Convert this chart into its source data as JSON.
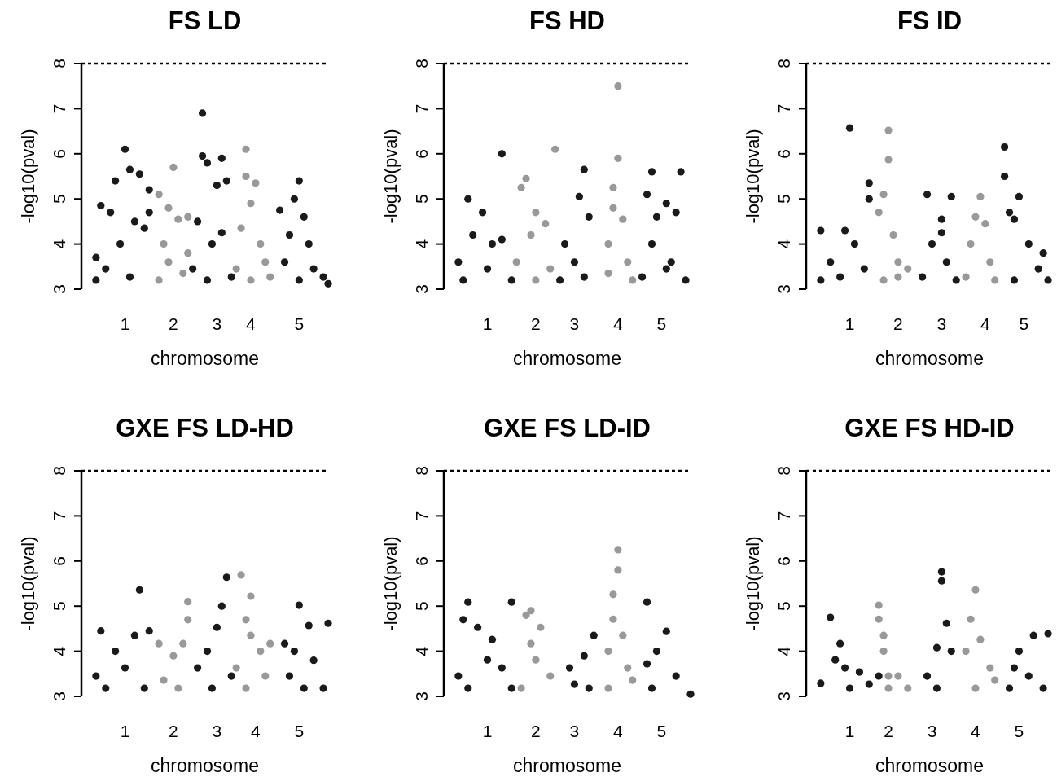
{
  "chart_data": [
    {
      "type": "scatter",
      "title": "FS LD",
      "xlabel": "chromosome",
      "ylabel": "-log10(pval)",
      "ylim": [
        3,
        8
      ],
      "yticks": [
        3,
        4,
        5,
        6,
        7,
        8
      ],
      "marker": "circle",
      "ref_lines": [
        {
          "axis": "y",
          "value": 8,
          "line_style": "dashed"
        }
      ],
      "categories": [
        null,
        null,
        null,
        null,
        null,
        null,
        null,
        null,
        "1",
        null,
        null,
        null,
        null,
        null,
        null,
        null,
        null,
        null,
        "2",
        null,
        null,
        null,
        null,
        null,
        null,
        null,
        null,
        "3",
        null,
        null,
        null,
        null,
        null,
        null,
        "4",
        null,
        null,
        null,
        null,
        null,
        null,
        null,
        null,
        null,
        "5",
        null,
        null,
        null,
        null,
        null,
        null
      ],
      "series": [
        {
          "color": "#1a1a1a",
          "values": [
            null,
            null,
            3.7,
            4.85,
            3.45,
            4.7,
            5.4,
            4.0,
            6.1,
            5.65,
            4.5,
            5.55,
            4.35,
            5.2,
            null,
            null,
            null,
            null,
            null,
            null,
            null,
            null,
            3.45,
            4.5,
            6.9,
            5.8,
            4.0,
            5.3,
            5.9,
            5.4,
            3.27,
            null,
            null,
            null,
            null,
            null,
            null,
            null,
            null,
            null,
            4.75,
            3.6,
            4.2,
            5.0,
            5.4,
            4.6,
            4.0,
            3.45,
            null,
            3.27,
            3.12
          ]
        },
        {
          "color": "#1a1a1a",
          "values": [
            null,
            null,
            3.2,
            null,
            null,
            null,
            null,
            null,
            null,
            3.27,
            null,
            null,
            null,
            4.7,
            null,
            null,
            null,
            null,
            null,
            null,
            null,
            null,
            null,
            null,
            5.95,
            3.2,
            null,
            null,
            4.25,
            null,
            null,
            null,
            null,
            null,
            null,
            null,
            null,
            null,
            null,
            null,
            null,
            null,
            null,
            null,
            3.2,
            null,
            null,
            null,
            null,
            null,
            null
          ]
        },
        {
          "color": "#999999",
          "values": [
            null,
            null,
            null,
            null,
            null,
            null,
            null,
            null,
            null,
            null,
            null,
            null,
            null,
            null,
            null,
            5.1,
            4.0,
            4.8,
            5.7,
            4.55,
            3.35,
            4.6,
            null,
            null,
            null,
            null,
            null,
            null,
            null,
            null,
            null,
            3.45,
            4.35,
            6.1,
            4.9,
            5.35,
            4.0,
            3.6,
            3.27,
            null,
            null,
            null,
            null,
            null,
            null,
            null,
            null,
            null,
            null,
            null,
            null
          ]
        },
        {
          "color": "#999999",
          "values": [
            null,
            null,
            null,
            null,
            null,
            null,
            null,
            null,
            null,
            null,
            null,
            null,
            null,
            null,
            null,
            3.2,
            null,
            3.6,
            null,
            null,
            null,
            3.8,
            null,
            null,
            null,
            null,
            null,
            null,
            null,
            null,
            null,
            null,
            null,
            5.5,
            3.2,
            null,
            null,
            null,
            null,
            null,
            null,
            null,
            null,
            null,
            null,
            null,
            null,
            null,
            null,
            null,
            null
          ]
        }
      ]
    },
    {
      "type": "scatter",
      "title": "FS HD",
      "xlabel": "chromosome",
      "ylabel": "-log10(pval)",
      "ylim": [
        3,
        8
      ],
      "yticks": [
        3,
        4,
        5,
        6,
        7,
        8
      ],
      "marker": "circle",
      "ref_lines": [
        {
          "axis": "y",
          "value": 8,
          "line_style": "dashed"
        }
      ],
      "categories": [
        null,
        null,
        null,
        null,
        null,
        null,
        null,
        null,
        "1",
        null,
        null,
        null,
        null,
        null,
        null,
        null,
        null,
        null,
        "2",
        null,
        null,
        null,
        null,
        null,
        null,
        null,
        "3",
        null,
        null,
        null,
        null,
        null,
        null,
        null,
        null,
        "4",
        null,
        null,
        null,
        null,
        null,
        null,
        null,
        null,
        "5",
        null,
        null,
        null,
        null,
        null,
        null
      ],
      "series": [
        {
          "color": "#1a1a1a",
          "values": [
            null,
            null,
            3.6,
            3.2,
            5.0,
            4.2,
            null,
            4.7,
            3.45,
            4.0,
            null,
            6.0,
            null,
            3.2,
            null,
            null,
            null,
            null,
            null,
            null,
            null,
            null,
            null,
            3.2,
            4.0,
            null,
            3.6,
            5.05,
            5.65,
            4.6,
            null,
            null,
            null,
            null,
            null,
            null,
            null,
            null,
            null,
            null,
            3.27,
            5.1,
            5.6,
            4.6,
            null,
            4.9,
            3.6,
            4.7,
            5.6,
            3.2,
            null
          ]
        },
        {
          "color": "#1a1a1a",
          "values": [
            null,
            null,
            null,
            null,
            null,
            null,
            null,
            null,
            null,
            null,
            null,
            4.1,
            null,
            null,
            null,
            null,
            null,
            null,
            null,
            null,
            null,
            null,
            null,
            null,
            null,
            null,
            null,
            null,
            3.27,
            null,
            null,
            null,
            null,
            null,
            null,
            null,
            null,
            null,
            null,
            null,
            null,
            null,
            4.0,
            null,
            null,
            3.45,
            null,
            null,
            null,
            null,
            null
          ]
        },
        {
          "color": "#999999",
          "values": [
            null,
            null,
            null,
            null,
            null,
            null,
            null,
            null,
            null,
            null,
            null,
            null,
            null,
            null,
            3.6,
            5.25,
            5.45,
            4.2,
            4.7,
            null,
            4.45,
            3.45,
            6.1,
            null,
            null,
            null,
            null,
            null,
            null,
            null,
            null,
            null,
            null,
            4.0,
            5.25,
            7.5,
            4.55,
            3.6,
            3.2,
            null,
            null,
            null,
            null,
            null,
            null,
            null,
            null,
            null,
            null,
            null,
            null
          ]
        },
        {
          "color": "#999999",
          "values": [
            null,
            null,
            null,
            null,
            null,
            null,
            null,
            null,
            null,
            null,
            null,
            null,
            null,
            null,
            null,
            null,
            null,
            null,
            3.2,
            null,
            null,
            null,
            null,
            null,
            null,
            null,
            null,
            null,
            null,
            null,
            null,
            null,
            null,
            3.35,
            4.8,
            5.9,
            null,
            null,
            null,
            null,
            null,
            null,
            null,
            null,
            null,
            null,
            null,
            null,
            null,
            null,
            null
          ]
        }
      ]
    },
    {
      "type": "scatter",
      "title": "FS ID",
      "xlabel": "chromosome",
      "ylabel": "-log10(pval)",
      "ylim": [
        3,
        8
      ],
      "yticks": [
        3,
        4,
        5,
        6,
        7,
        8
      ],
      "marker": "circle",
      "ref_lines": [
        {
          "axis": "y",
          "value": 8,
          "line_style": "dashed"
        }
      ],
      "categories": [
        null,
        null,
        null,
        null,
        null,
        null,
        null,
        null,
        "1",
        null,
        null,
        null,
        null,
        null,
        null,
        null,
        null,
        null,
        "2",
        null,
        null,
        null,
        null,
        null,
        null,
        null,
        null,
        "3",
        null,
        null,
        null,
        null,
        null,
        null,
        null,
        null,
        "4",
        null,
        null,
        null,
        null,
        null,
        null,
        null,
        "5",
        null,
        null,
        null,
        null,
        null,
        null
      ],
      "series": [
        {
          "color": "#1a1a1a",
          "values": [
            null,
            null,
            4.3,
            null,
            3.6,
            null,
            3.27,
            4.3,
            6.57,
            4.0,
            null,
            3.45,
            5.35,
            null,
            null,
            null,
            null,
            null,
            null,
            null,
            null,
            null,
            null,
            3.27,
            5.1,
            4.0,
            null,
            4.55,
            3.6,
            5.05,
            3.2,
            null,
            null,
            null,
            null,
            null,
            null,
            null,
            null,
            null,
            6.15,
            4.7,
            4.55,
            5.05,
            null,
            4.0,
            null,
            3.45,
            3.8,
            3.2,
            null
          ]
        },
        {
          "color": "#1a1a1a",
          "values": [
            null,
            null,
            3.2,
            null,
            null,
            null,
            null,
            null,
            null,
            null,
            null,
            null,
            5.0,
            null,
            null,
            null,
            null,
            null,
            null,
            null,
            null,
            null,
            null,
            null,
            null,
            null,
            null,
            4.25,
            null,
            null,
            null,
            null,
            null,
            null,
            null,
            null,
            null,
            null,
            null,
            null,
            5.5,
            null,
            3.2,
            null,
            null,
            null,
            null,
            null,
            null,
            null,
            null
          ]
        },
        {
          "color": "#999999",
          "values": [
            null,
            null,
            null,
            null,
            null,
            null,
            null,
            null,
            null,
            null,
            null,
            null,
            null,
            null,
            4.7,
            5.1,
            6.52,
            4.2,
            3.6,
            null,
            3.45,
            null,
            null,
            null,
            null,
            null,
            null,
            null,
            null,
            null,
            null,
            null,
            3.27,
            4.0,
            4.6,
            5.05,
            4.45,
            3.6,
            3.2,
            null,
            null,
            null,
            null,
            null,
            null,
            null,
            null,
            null,
            null,
            null,
            null
          ]
        },
        {
          "color": "#999999",
          "values": [
            null,
            null,
            null,
            null,
            null,
            null,
            null,
            null,
            null,
            null,
            null,
            null,
            null,
            null,
            null,
            3.2,
            5.87,
            null,
            3.27,
            null,
            null,
            null,
            null,
            null,
            null,
            null,
            null,
            null,
            null,
            null,
            null,
            null,
            null,
            null,
            null,
            null,
            null,
            null,
            null,
            null,
            null,
            null,
            null,
            null,
            null,
            null,
            null,
            null,
            null,
            null,
            null
          ]
        }
      ]
    },
    {
      "type": "scatter",
      "title": "GXE FS LD-HD",
      "xlabel": "chromosome",
      "ylabel": "-log10(pval)",
      "ylim": [
        3,
        8
      ],
      "yticks": [
        3,
        4,
        5,
        6,
        7,
        8
      ],
      "marker": "circle",
      "ref_lines": [
        {
          "axis": "y",
          "value": 8,
          "line_style": "dashed"
        }
      ],
      "categories": [
        null,
        null,
        null,
        null,
        null,
        null,
        null,
        null,
        "1",
        null,
        null,
        null,
        null,
        null,
        null,
        null,
        null,
        null,
        "2",
        null,
        null,
        null,
        null,
        null,
        null,
        null,
        null,
        "3",
        null,
        null,
        null,
        null,
        null,
        null,
        null,
        "4",
        null,
        null,
        null,
        null,
        null,
        null,
        null,
        null,
        "5",
        null,
        null,
        null,
        null,
        null,
        null
      ],
      "series": [
        {
          "color": "#1a1a1a",
          "values": [
            null,
            null,
            3.45,
            4.45,
            3.18,
            null,
            4.0,
            null,
            3.63,
            null,
            4.35,
            5.36,
            3.18,
            4.45,
            null,
            null,
            null,
            null,
            null,
            null,
            null,
            null,
            null,
            3.63,
            null,
            4.0,
            3.18,
            4.53,
            5.0,
            5.64,
            3.45,
            null,
            null,
            null,
            null,
            null,
            null,
            null,
            null,
            null,
            null,
            4.17,
            3.45,
            4.0,
            5.02,
            3.18,
            4.57,
            3.8,
            null,
            3.18,
            4.62
          ]
        },
        {
          "color": "#999999",
          "values": [
            null,
            null,
            null,
            null,
            null,
            null,
            null,
            null,
            null,
            null,
            null,
            null,
            null,
            null,
            null,
            4.17,
            3.36,
            null,
            3.9,
            3.18,
            4.17,
            5.1,
            null,
            null,
            null,
            null,
            null,
            null,
            null,
            null,
            null,
            3.63,
            5.69,
            4.7,
            5.22,
            null,
            4.0,
            3.45,
            4.17,
            null,
            null,
            null,
            null,
            null,
            null,
            null,
            null,
            null,
            null,
            null,
            null
          ]
        },
        {
          "color": "#999999",
          "values": [
            null,
            null,
            null,
            null,
            null,
            null,
            null,
            null,
            null,
            null,
            null,
            null,
            null,
            null,
            null,
            null,
            null,
            null,
            null,
            null,
            null,
            4.7,
            null,
            null,
            null,
            null,
            null,
            null,
            null,
            null,
            null,
            null,
            null,
            3.18,
            4.35,
            null,
            null,
            null,
            null,
            null,
            null,
            null,
            null,
            null,
            null,
            null,
            null,
            null,
            null,
            null,
            null
          ]
        }
      ]
    },
    {
      "type": "scatter",
      "title": "GXE FS LD-ID",
      "xlabel": "chromosome",
      "ylabel": "-log10(pval)",
      "ylim": [
        3,
        8
      ],
      "yticks": [
        3,
        4,
        5,
        6,
        7,
        8
      ],
      "marker": "circle",
      "ref_lines": [
        {
          "axis": "y",
          "value": 8,
          "line_style": "dashed"
        }
      ],
      "categories": [
        null,
        null,
        null,
        null,
        null,
        null,
        null,
        null,
        "1",
        null,
        null,
        null,
        null,
        null,
        null,
        null,
        null,
        null,
        "2",
        null,
        null,
        null,
        null,
        null,
        null,
        null,
        "3",
        null,
        null,
        null,
        null,
        null,
        null,
        null,
        null,
        "4",
        null,
        null,
        null,
        null,
        null,
        null,
        null,
        null,
        "5",
        null,
        null,
        null,
        null,
        null,
        null
      ],
      "series": [
        {
          "color": "#1a1a1a",
          "values": [
            null,
            null,
            3.45,
            4.7,
            5.09,
            null,
            4.53,
            null,
            3.81,
            4.26,
            null,
            3.63,
            null,
            5.09,
            null,
            null,
            null,
            null,
            null,
            null,
            null,
            null,
            null,
            null,
            null,
            3.63,
            3.27,
            null,
            3.9,
            3.18,
            4.35,
            null,
            null,
            null,
            null,
            null,
            null,
            null,
            null,
            null,
            null,
            5.09,
            3.18,
            4.0,
            null,
            4.44,
            null,
            3.45,
            null,
            null,
            3.05
          ]
        },
        {
          "color": "#1a1a1a",
          "values": [
            null,
            null,
            null,
            null,
            3.18,
            null,
            null,
            null,
            null,
            null,
            null,
            null,
            null,
            3.18,
            null,
            null,
            null,
            null,
            null,
            null,
            null,
            null,
            null,
            null,
            null,
            null,
            null,
            null,
            null,
            null,
            null,
            null,
            null,
            null,
            null,
            null,
            null,
            null,
            null,
            null,
            null,
            3.72,
            null,
            null,
            null,
            null,
            null,
            null,
            null,
            null,
            null
          ]
        },
        {
          "color": "#999999",
          "values": [
            null,
            null,
            null,
            null,
            null,
            null,
            null,
            null,
            null,
            null,
            null,
            null,
            null,
            null,
            null,
            3.18,
            4.8,
            4.9,
            3.81,
            4.53,
            null,
            3.45,
            null,
            null,
            null,
            null,
            null,
            null,
            null,
            null,
            null,
            null,
            null,
            4.0,
            5.26,
            6.25,
            4.35,
            3.63,
            3.36,
            null,
            null,
            null,
            null,
            null,
            null,
            null,
            null,
            null,
            null,
            null,
            null
          ]
        },
        {
          "color": "#999999",
          "values": [
            null,
            null,
            null,
            null,
            null,
            null,
            null,
            null,
            null,
            null,
            null,
            null,
            null,
            null,
            null,
            null,
            null,
            4.17,
            null,
            null,
            null,
            null,
            null,
            null,
            null,
            null,
            null,
            null,
            null,
            null,
            null,
            null,
            null,
            3.18,
            4.71,
            5.8,
            null,
            null,
            null,
            null,
            null,
            null,
            null,
            null,
            null,
            null,
            null,
            null,
            null,
            null,
            null
          ]
        }
      ]
    },
    {
      "type": "scatter",
      "title": "GXE FS HD-ID",
      "xlabel": "chromosome",
      "ylabel": "-log10(pval)",
      "ylim": [
        3,
        8
      ],
      "yticks": [
        3,
        4,
        5,
        6,
        7,
        8
      ],
      "marker": "circle",
      "ref_lines": [
        {
          "axis": "y",
          "value": 8,
          "line_style": "dashed"
        }
      ],
      "categories": [
        null,
        null,
        null,
        null,
        null,
        null,
        null,
        null,
        "1",
        null,
        null,
        null,
        null,
        null,
        null,
        null,
        "2",
        null,
        null,
        null,
        null,
        null,
        null,
        null,
        null,
        "3",
        null,
        null,
        null,
        null,
        null,
        null,
        null,
        null,
        "4",
        null,
        null,
        null,
        null,
        null,
        null,
        null,
        null,
        "5",
        null,
        null,
        null,
        null,
        null,
        null,
        null
      ],
      "series": [
        {
          "color": "#1a1a1a",
          "values": [
            null,
            null,
            3.29,
            null,
            4.75,
            3.81,
            4.17,
            3.63,
            3.18,
            null,
            3.54,
            null,
            3.27,
            null,
            3.45,
            null,
            null,
            null,
            null,
            null,
            null,
            null,
            null,
            null,
            3.45,
            null,
            4.08,
            5.76,
            4.62,
            4.0,
            null,
            null,
            null,
            null,
            null,
            null,
            null,
            null,
            null,
            null,
            null,
            3.18,
            3.63,
            4.0,
            null,
            3.45,
            4.35,
            null,
            3.18,
            4.39,
            null
          ]
        },
        {
          "color": "#1a1a1a",
          "values": [
            null,
            null,
            null,
            null,
            null,
            null,
            null,
            null,
            null,
            null,
            null,
            null,
            null,
            null,
            null,
            null,
            null,
            null,
            null,
            null,
            null,
            null,
            null,
            null,
            null,
            null,
            3.18,
            5.56,
            null,
            null,
            null,
            null,
            null,
            null,
            null,
            null,
            null,
            null,
            null,
            null,
            null,
            null,
            null,
            null,
            null,
            null,
            null,
            null,
            null,
            null,
            null
          ]
        },
        {
          "color": "#999999",
          "values": [
            null,
            null,
            null,
            null,
            null,
            null,
            null,
            null,
            null,
            null,
            null,
            null,
            null,
            null,
            5.02,
            4.35,
            3.45,
            null,
            3.45,
            null,
            3.18,
            null,
            null,
            null,
            null,
            null,
            null,
            null,
            null,
            null,
            null,
            null,
            4.0,
            4.71,
            5.36,
            4.26,
            null,
            3.63,
            3.36,
            null,
            null,
            null,
            null,
            null,
            null,
            null,
            null,
            null,
            null,
            null,
            null
          ]
        },
        {
          "color": "#999999",
          "values": [
            null,
            null,
            null,
            null,
            null,
            null,
            null,
            null,
            null,
            null,
            null,
            null,
            null,
            null,
            4.71,
            4.0,
            3.18,
            null,
            null,
            null,
            null,
            null,
            null,
            null,
            null,
            null,
            null,
            null,
            null,
            null,
            null,
            null,
            null,
            null,
            3.18,
            null,
            null,
            null,
            null,
            null,
            null,
            null,
            null,
            null,
            null,
            null,
            null,
            null,
            null,
            null,
            null
          ]
        }
      ]
    }
  ]
}
